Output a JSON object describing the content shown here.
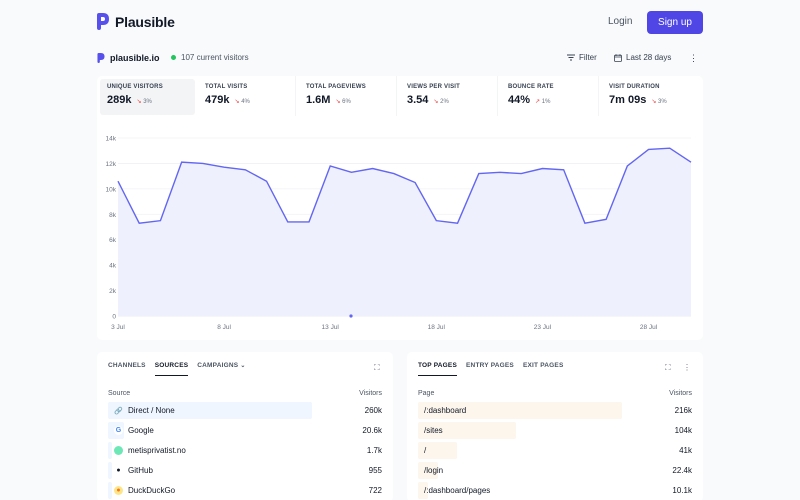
{
  "nav": {
    "brand": "Plausible",
    "login": "Login",
    "signup": "Sign up"
  },
  "subheader": {
    "site": "plausible.io",
    "current_visitors": "107 current visitors",
    "filter": "Filter",
    "date_range": "Last 28 days"
  },
  "metrics": [
    {
      "label": "UNIQUE VISITORS",
      "value": "289k",
      "change": "3%",
      "direction": "down"
    },
    {
      "label": "TOTAL VISITS",
      "value": "479k",
      "change": "4%",
      "direction": "down"
    },
    {
      "label": "TOTAL PAGEVIEWS",
      "value": "1.6M",
      "change": "6%",
      "direction": "down"
    },
    {
      "label": "VIEWS PER VISIT",
      "value": "3.54",
      "change": "2%",
      "direction": "down"
    },
    {
      "label": "BOUNCE RATE",
      "value": "44%",
      "change": "1%",
      "direction": "up"
    },
    {
      "label": "VISIT DURATION",
      "value": "7m 09s",
      "change": "3%",
      "direction": "down"
    }
  ],
  "chart_data": {
    "type": "area",
    "x_ticks": [
      "3 Jul",
      "8 Jul",
      "13 Jul",
      "18 Jul",
      "23 Jul",
      "28 Jul"
    ],
    "y_ticks": [
      "0",
      "2k",
      "4k",
      "6k",
      "8k",
      "10k",
      "12k",
      "14k"
    ],
    "ylim": [
      0,
      14000
    ],
    "values": [
      10600,
      7300,
      7500,
      12100,
      12000,
      11700,
      11500,
      10600,
      7400,
      7400,
      11800,
      11300,
      11600,
      11200,
      10500,
      7500,
      7300,
      11200,
      11300,
      11200,
      11600,
      11500,
      7300,
      7600,
      11800,
      13100,
      13200,
      12100
    ],
    "color": "#6366f1",
    "fill": "#eef0fd"
  },
  "sources_card": {
    "tabs": [
      "CHANNELS",
      "SOURCES",
      "CAMPAIGNS"
    ],
    "active_tab": "SOURCES",
    "col_left": "Source",
    "col_right": "Visitors",
    "rows": [
      {
        "label": "Direct / None",
        "value": "260k",
        "share": 1.0,
        "icon": "link-icon"
      },
      {
        "label": "Google",
        "value": "20.6k",
        "share": 0.08,
        "icon": "google-icon"
      },
      {
        "label": "metisprivatist.no",
        "value": "1.7k",
        "share": 0.01,
        "icon": "globe-icon"
      },
      {
        "label": "GitHub",
        "value": "955",
        "share": 0.004,
        "icon": "github-icon"
      },
      {
        "label": "DuckDuckGo",
        "value": "722",
        "share": 0.003,
        "icon": "duckduckgo-icon"
      }
    ]
  },
  "pages_card": {
    "tabs": [
      "TOP PAGES",
      "ENTRY PAGES",
      "EXIT PAGES"
    ],
    "active_tab": "TOP PAGES",
    "col_left": "Page",
    "col_right": "Visitors",
    "rows": [
      {
        "label": "/:dashboard",
        "value": "216k",
        "share": 1.0
      },
      {
        "label": "/sites",
        "value": "104k",
        "share": 0.48
      },
      {
        "label": "/",
        "value": "41k",
        "share": 0.19
      },
      {
        "label": "/login",
        "value": "22.4k",
        "share": 0.1
      },
      {
        "label": "/:dashboard/pages",
        "value": "10.1k",
        "share": 0.05
      }
    ]
  },
  "colors": {
    "accent": "#4f46e5",
    "source_bar": "#eff6ff",
    "page_bar": "#fdf6ec"
  }
}
